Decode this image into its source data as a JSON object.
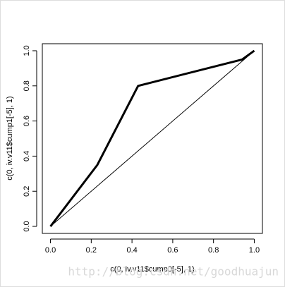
{
  "chart_data": {
    "type": "line",
    "x_label": "c(0, iv.v11$cump0[-5], 1)",
    "y_label": "c(0, iv.v11$cump1[-5], 1)",
    "series": [
      {
        "color": "#000000",
        "width": 3,
        "x": [
          0,
          0.23,
          0.43,
          0.94,
          1
        ],
        "values": [
          0,
          0.35,
          0.8,
          0.95,
          1
        ]
      },
      {
        "color": "#000000",
        "width": 1,
        "x": [
          0,
          1
        ],
        "values": [
          0,
          1
        ]
      }
    ],
    "xlim": [
      -0.04,
      1.04
    ],
    "ylim": [
      -0.04,
      1.04
    ],
    "xticks": [
      {
        "value": 0,
        "label": "0.0"
      },
      {
        "value": 0.2,
        "label": "0.2"
      },
      {
        "value": 0.4,
        "label": "0.4"
      },
      {
        "value": 0.6,
        "label": "0.6"
      },
      {
        "value": 0.8,
        "label": "0.8"
      },
      {
        "value": 1,
        "label": "1.0"
      }
    ],
    "yticks": [
      {
        "value": 0,
        "label": "0.0"
      },
      {
        "value": 0.2,
        "label": "0.2"
      },
      {
        "value": 0.4,
        "label": "0.4"
      },
      {
        "value": 0.6,
        "label": "0.6"
      },
      {
        "value": 0.8,
        "label": "0.8"
      },
      {
        "value": 1,
        "label": "1.0"
      }
    ],
    "grid": false,
    "annotation": "http://blog.csdn.net/goodhuajun"
  }
}
